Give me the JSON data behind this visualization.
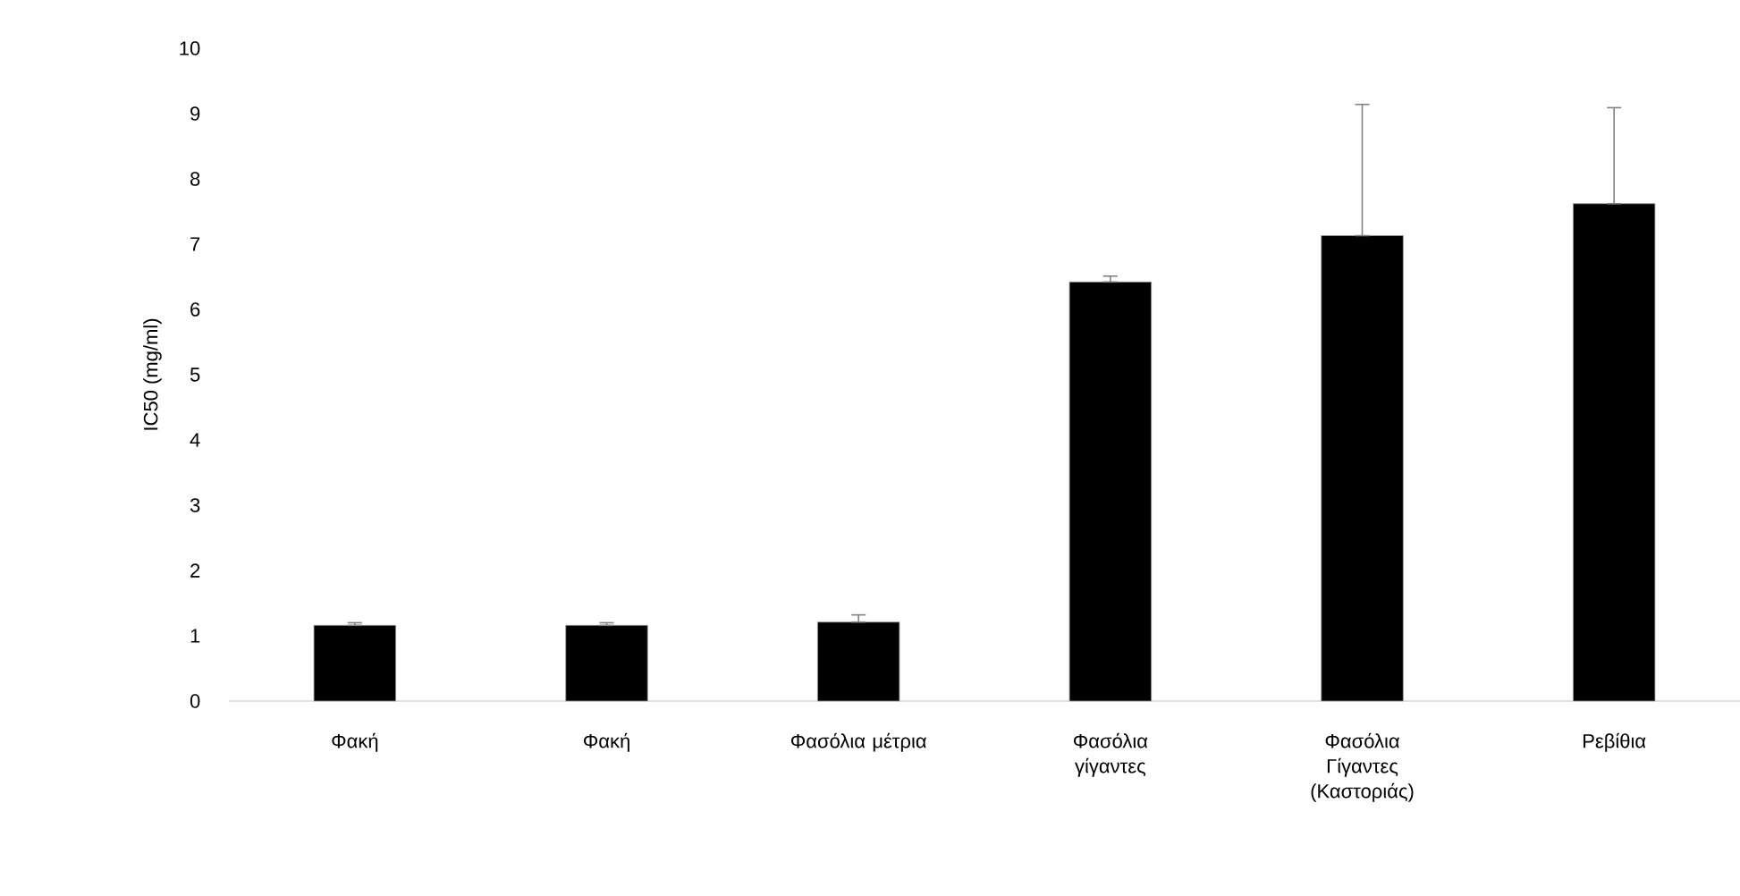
{
  "chart_data": {
    "type": "bar",
    "ylabel": "IC50 (mg/ml)",
    "categories": [
      "Φακή",
      "Φακή",
      "Φασόλια μέτρια",
      "Φασόλια γίγαντες",
      "Φασόλια Γίγαντες (Καστοριάς)",
      "Ρεβίθια"
    ],
    "values": [
      1.16,
      1.16,
      1.21,
      6.42,
      7.13,
      7.62
    ],
    "errors": [
      [
        1.16,
        1.2
      ],
      [
        1.16,
        1.2
      ],
      [
        1.21,
        1.32
      ],
      [
        6.42,
        6.51
      ],
      [
        7.13,
        9.14
      ],
      [
        7.62,
        9.09
      ]
    ],
    "color": "#000000",
    "ylim": [
      0,
      10
    ],
    "yticks": [
      0,
      1,
      2,
      3,
      4,
      5,
      6,
      7,
      8,
      9,
      10
    ]
  }
}
